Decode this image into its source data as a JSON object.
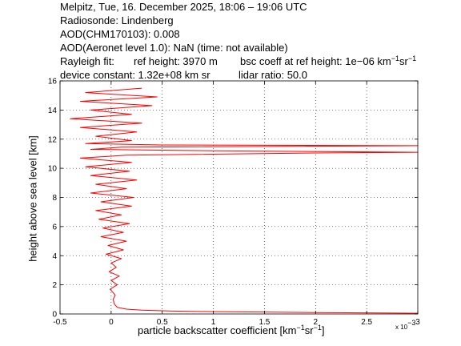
{
  "header": {
    "line1": "Melpitz, Tue, 16. December 2025, 18:06 – 19:06 UTC",
    "line2": "Radiosonde: Lindenberg",
    "line3": "AOD(CHM170103): 0.008",
    "line4": "AOD(Aeronet level 1.0): NaN   (time: not available)",
    "line5a": "Rayleigh fit:",
    "line5b": "ref height: 3970 m",
    "line5c": "bsc coeff at ref height: 1e−06 km",
    "line6a": "device constant: 1.32e+08 km sr",
    "line6b": "lidar ratio: 50.0"
  },
  "units": {
    "minus1": "−1"
  },
  "axes": {
    "xlabel": "particle backscatter coefficient [km",
    "xlabel_close": "]",
    "ylabel": "height above sea level [km]",
    "xmultiplier": "x 10"
  },
  "colors": {
    "line": "#ff0000",
    "grid": "#000000"
  },
  "chart_data": {
    "type": "line",
    "title": "",
    "xlabel": "particle backscatter coefficient [km−1 sr−1]",
    "ylabel": "height above sea level [km]",
    "x_scale_factor": "x 10−3",
    "xlim": [
      -0.5,
      3
    ],
    "ylim": [
      0,
      16
    ],
    "x_ticks": [
      -0.5,
      0,
      0.5,
      1,
      1.5,
      2,
      2.5,
      3
    ],
    "y_ticks": [
      0,
      2,
      4,
      6,
      8,
      10,
      12,
      14,
      16
    ],
    "x_tick_labels": [
      "-0.5",
      "0",
      "0.5",
      "1",
      "1.5",
      "2",
      "2.5",
      "3"
    ],
    "y_tick_labels": [
      "0",
      "2",
      "4",
      "6",
      "8",
      "10",
      "12",
      "14",
      "16"
    ],
    "grid": true,
    "series": [
      {
        "color": "#ff0000",
        "points": [
          [
            3.0,
            0.05
          ],
          [
            2.6,
            0.07
          ],
          [
            2.0,
            0.1
          ],
          [
            1.5,
            0.13
          ],
          [
            1.0,
            0.16
          ],
          [
            0.6,
            0.2
          ],
          [
            0.3,
            0.26
          ],
          [
            0.15,
            0.33
          ],
          [
            0.06,
            0.45
          ],
          [
            0.03,
            0.7
          ],
          [
            0.02,
            1.0
          ],
          [
            0.04,
            1.3
          ],
          [
            -0.01,
            1.7
          ],
          [
            0.06,
            2.0
          ],
          [
            0.0,
            2.3
          ],
          [
            0.08,
            2.6
          ],
          [
            -0.02,
            2.9
          ],
          [
            0.05,
            3.2
          ],
          [
            0.0,
            3.5
          ],
          [
            0.1,
            3.8
          ],
          [
            -0.05,
            4.1
          ],
          [
            0.12,
            4.4
          ],
          [
            -0.03,
            4.7
          ],
          [
            0.15,
            5.0
          ],
          [
            -0.1,
            5.3
          ],
          [
            0.12,
            5.6
          ],
          [
            -0.08,
            5.9
          ],
          [
            0.18,
            6.2
          ],
          [
            -0.12,
            6.5
          ],
          [
            0.1,
            6.8
          ],
          [
            -0.15,
            7.1
          ],
          [
            0.2,
            7.4
          ],
          [
            -0.1,
            7.7
          ],
          [
            0.22,
            8.0
          ],
          [
            -0.2,
            8.3
          ],
          [
            0.15,
            8.6
          ],
          [
            -0.15,
            8.9
          ],
          [
            0.25,
            9.2
          ],
          [
            -0.2,
            9.5
          ],
          [
            0.18,
            9.8
          ],
          [
            -0.25,
            10.1
          ],
          [
            0.2,
            10.4
          ],
          [
            -0.3,
            10.7
          ],
          [
            0.15,
            10.9
          ],
          [
            2.0,
            11.05
          ],
          [
            3.0,
            11.1
          ],
          [
            1.0,
            11.2
          ],
          [
            -0.2,
            11.3
          ],
          [
            0.1,
            11.45
          ],
          [
            3.0,
            11.55
          ],
          [
            0.5,
            11.6
          ],
          [
            -0.25,
            11.7
          ],
          [
            0.2,
            11.9
          ],
          [
            -0.15,
            12.2
          ],
          [
            0.25,
            12.5
          ],
          [
            -0.3,
            12.8
          ],
          [
            0.3,
            13.1
          ],
          [
            -0.4,
            13.4
          ],
          [
            0.2,
            13.7
          ],
          [
            -0.2,
            14.0
          ],
          [
            0.4,
            14.3
          ],
          [
            -0.3,
            14.6
          ],
          [
            0.45,
            14.9
          ],
          [
            -0.25,
            15.2
          ],
          [
            0.3,
            15.5
          ]
        ]
      }
    ]
  }
}
